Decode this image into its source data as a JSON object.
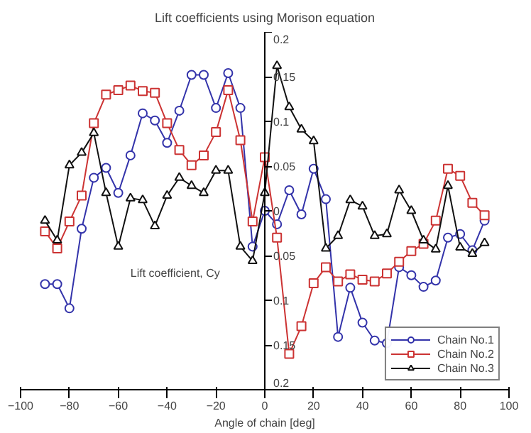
{
  "chart_data": {
    "type": "line",
    "title": "Lift coefficients using Morison equation",
    "xlabel": "Angle of chain [deg]",
    "ylabel": "Lift coefficient, Cy",
    "x": [
      -90,
      -85,
      -80,
      -75,
      -70,
      -65,
      -60,
      -55,
      -50,
      -45,
      -40,
      -35,
      -30,
      -25,
      -20,
      -15,
      -10,
      -5,
      0,
      5,
      10,
      15,
      20,
      25,
      30,
      35,
      40,
      45,
      50,
      55,
      60,
      65,
      70,
      75,
      80,
      85,
      90
    ],
    "series": [
      {
        "name": "Chain No.1",
        "color": "#3333aa",
        "marker": "circle",
        "values": [
          -0.082,
          -0.082,
          -0.109,
          -0.02,
          0.037,
          0.048,
          0.02,
          0.062,
          0.109,
          0.101,
          0.076,
          0.112,
          0.152,
          0.152,
          0.115,
          0.154,
          0.115,
          -0.04,
          0.0,
          -0.015,
          0.023,
          -0.004,
          0.047,
          0.013,
          -0.141,
          -0.086,
          -0.125,
          -0.145,
          -0.148,
          -0.063,
          -0.072,
          -0.085,
          -0.078,
          -0.03,
          -0.026,
          -0.044,
          -0.011
        ]
      },
      {
        "name": "Chain No.2",
        "color": "#cc3333",
        "marker": "square",
        "values": [
          -0.023,
          -0.042,
          -0.012,
          0.017,
          0.098,
          0.13,
          0.135,
          0.14,
          0.134,
          0.132,
          0.098,
          0.068,
          0.051,
          0.062,
          0.088,
          0.135,
          0.079,
          -0.012,
          0.06,
          -0.03,
          -0.16,
          -0.129,
          -0.081,
          -0.063,
          -0.079,
          -0.071,
          -0.077,
          -0.079,
          -0.07,
          -0.057,
          -0.045,
          -0.037,
          -0.011,
          0.047,
          0.039,
          0.009,
          -0.005
        ]
      },
      {
        "name": "Chain No.3",
        "color": "#111111",
        "marker": "triangle",
        "values": [
          -0.011,
          -0.033,
          0.051,
          0.065,
          0.087,
          0.02,
          -0.04,
          0.014,
          0.012,
          -0.017,
          0.017,
          0.037,
          0.028,
          0.02,
          0.045,
          0.045,
          -0.04,
          -0.056,
          0.02,
          0.162,
          0.116,
          0.091,
          0.078,
          -0.042,
          -0.028,
          0.012,
          0.005,
          -0.028,
          -0.026,
          0.023,
          0.0,
          -0.033,
          -0.043,
          0.028,
          -0.041,
          -0.048,
          -0.036
        ]
      }
    ],
    "xlim": [
      -100,
      100
    ],
    "xticks": [
      -100,
      -80,
      -60,
      -40,
      -20,
      0,
      20,
      40,
      60,
      80,
      100
    ],
    "ylim": [
      -0.2,
      0.2
    ],
    "yticks": [
      {
        "value": -0.2,
        "label": "0.2"
      },
      {
        "value": -0.15,
        "label": "0.15"
      },
      {
        "value": -0.1,
        "label": "0.1"
      },
      {
        "value": -0.05,
        "label": "0.05"
      },
      0,
      0.05,
      0.1,
      0.15,
      0.2
    ],
    "legend": "bottom right",
    "line_style": "solid"
  }
}
